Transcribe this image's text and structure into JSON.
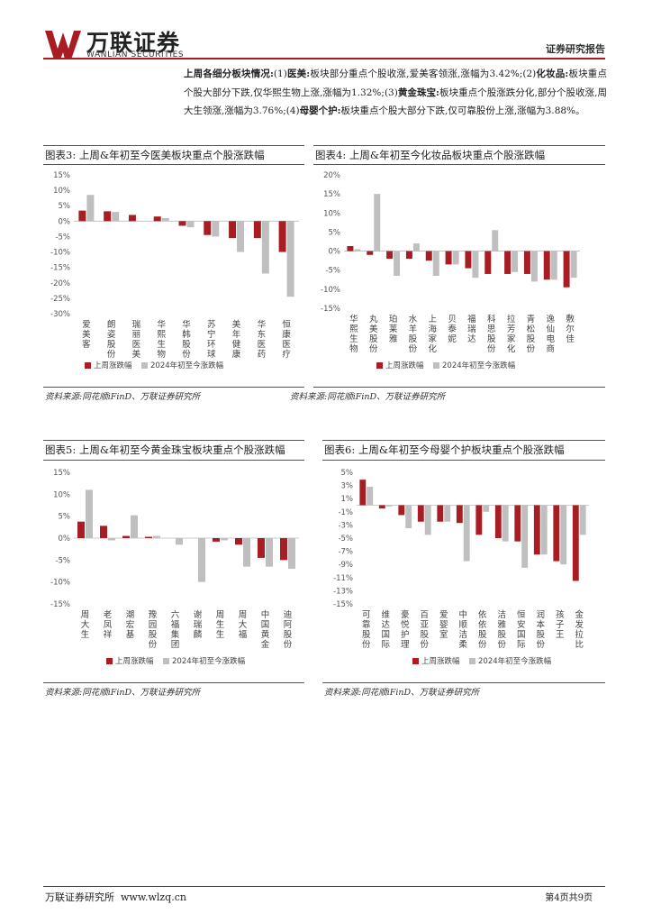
{
  "header": {
    "logo_cn": "万联证券",
    "logo_en": "WANLIAN SECURITIES",
    "report_type": "证券研究报告"
  },
  "summary": {
    "lead": "上周各细分板块情况:",
    "n1": "(1)",
    "s1_name": "医美:",
    "s1_text": "板块部分重点个股收涨,爱美客领涨,涨幅为3.42%;",
    "n2": "(2)",
    "s2_name": "化妆品:",
    "s2_text": "板块重点个股大部分下跌,仅华熙生物上涨,涨幅为1.32%;",
    "n3": "(3)",
    "s3_name": "黄金珠宝:",
    "s3_text": "板块重点个股涨跌分化,部分个股收涨,周大生领涨,涨幅为3.76%;",
    "n4": "(4)",
    "s4_name": "母婴个护:",
    "s4_text": "板块重点个股大部分下跌,仅可靠股份上涨,涨幅为3.88%。"
  },
  "colors": {
    "weekly": "#a71d23",
    "ytd": "#bfbfbf",
    "accent": "#a71d23"
  },
  "charts": [
    {
      "fig_title": "图表3:  上周&年初至今医美板块重点个股涨跌幅",
      "source": "资料来源:同花顺iFinD、万联证券研究所",
      "chart_data": {
        "type": "bar",
        "categories": [
          "爱美客",
          "朗姿股份",
          "瑞丽医美",
          "华熙生物",
          "华韩股份",
          "苏宁环球",
          "美年健康",
          "华东医药",
          "恒康医疗"
        ],
        "series": [
          {
            "name": "上周涨跌幅",
            "values": [
              3.42,
              3.2,
              2.0,
              1.5,
              -1.5,
              -4.5,
              -5.5,
              -5.5,
              -10.0
            ]
          },
          {
            "name": "2024年初至今涨跌幅",
            "values": [
              8.5,
              3.0,
              0.0,
              1.0,
              -2.0,
              -5.0,
              -10.0,
              -17.0,
              -24.5
            ]
          }
        ],
        "ylim": [
          -30,
          15
        ],
        "yticks": [
          15,
          10,
          5,
          0,
          -5,
          -10,
          -15,
          -20,
          -25,
          -30
        ],
        "ytick_labels": [
          "15%",
          "10%",
          "5%",
          "0%",
          "-5%",
          "-10%",
          "-15%",
          "-20%",
          "-25%",
          "-30%"
        ],
        "legend": [
          "上周涨跌幅",
          "2024年初至今涨跌幅"
        ]
      }
    },
    {
      "fig_title": "图表4:  上周&年初至今化妆品板块重点个股涨跌幅",
      "source": "资料来源:同花顺iFinD、万联证券研究所",
      "chart_data": {
        "type": "bar",
        "categories": [
          "华熙生物",
          "丸美股份",
          "珀莱雅",
          "水羊股份",
          "上海家化",
          "贝泰妮",
          "福瑞达",
          "科思股份",
          "拉芳家化",
          "青松股份",
          "逸仙电商",
          "敷尔佳"
        ],
        "series": [
          {
            "name": "上周涨跌幅",
            "values": [
              1.32,
              -1.0,
              -2.0,
              -2.0,
              -2.5,
              -3.5,
              -4.5,
              -6.0,
              -6.0,
              -6.0,
              -7.5,
              -9.5
            ]
          },
          {
            "name": "2024年初至今涨跌幅",
            "values": [
              0.5,
              15.0,
              -6.5,
              2.0,
              -6.5,
              -3.5,
              -7.0,
              5.5,
              -5.5,
              -8.0,
              -7.5,
              -7.0
            ]
          }
        ],
        "ylim": [
          -15,
          20
        ],
        "yticks": [
          20,
          15,
          10,
          5,
          0,
          -5,
          -10,
          -15
        ],
        "ytick_labels": [
          "20%",
          "15%",
          "10%",
          "5%",
          "0%",
          "-5%",
          "-10%",
          "-15%"
        ],
        "legend": [
          "上周涨跌幅",
          "2024年初至今涨跌幅"
        ]
      }
    },
    {
      "fig_title": "图表5:  上周&年初至今黄金珠宝板块重点个股涨跌幅",
      "source": "资料来源:同花顺iFinD、万联证券研究所",
      "chart_data": {
        "type": "bar",
        "categories": [
          "周大生",
          "老凤祥",
          "潮宏基",
          "豫园股份",
          "六福集团",
          "谢瑞麟",
          "周生生",
          "周大福",
          "中国黄金",
          "迪阿股份"
        ],
        "series": [
          {
            "name": "上周涨跌幅",
            "values": [
              3.76,
              2.8,
              0.5,
              0.3,
              0.0,
              0.0,
              -0.8,
              -1.5,
              -4.5,
              -5.0
            ]
          },
          {
            "name": "2024年初至今涨跌幅",
            "values": [
              11.0,
              -0.5,
              5.2,
              0.5,
              -1.5,
              -10.0,
              -0.5,
              -6.5,
              -6.5,
              -7.0
            ]
          }
        ],
        "ylim": [
          -15,
          15
        ],
        "yticks": [
          15,
          10,
          5,
          0,
          -5,
          -10,
          -15
        ],
        "ytick_labels": [
          "15%",
          "10%",
          "5%",
          "0%",
          "-5%",
          "-10%",
          "-15%"
        ],
        "legend": [
          "上周涨跌幅",
          "2024年初至今涨跌幅"
        ]
      }
    },
    {
      "fig_title": "图表6:  上周&年初至今母婴个护板块重点个股涨跌幅",
      "source": "资料来源:同花顺iFinD、万联证券研究所",
      "chart_data": {
        "type": "bar",
        "categories": [
          "可靠股份",
          "维达国际",
          "豪悦护理",
          "百亚股份",
          "爱婴室",
          "中顺洁柔",
          "依依股份",
          "洁雅股份",
          "恒安国际",
          "润本股份",
          "孩子王",
          "金发拉比"
        ],
        "series": [
          {
            "name": "上周涨跌幅",
            "values": [
              3.88,
              -0.5,
              -1.5,
              -2.5,
              -2.5,
              -2.7,
              -4.5,
              -5.0,
              -5.5,
              -7.5,
              -8.5,
              -11.5
            ]
          },
          {
            "name": "2024年初至今涨跌幅",
            "values": [
              2.8,
              -0.2,
              -3.5,
              -4.5,
              -2.5,
              -8.5,
              -1.0,
              -5.5,
              -9.5,
              -7.5,
              -9.0,
              -4.5
            ]
          }
        ],
        "ylim": [
          -15,
          5
        ],
        "yticks": [
          5,
          3,
          1,
          -1,
          -3,
          -5,
          -7,
          -9,
          -11,
          -13,
          -15
        ],
        "ytick_labels": [
          "5%",
          "3%",
          "1%",
          "-1%",
          "-3%",
          "-5%",
          "-7%",
          "-9%",
          "-11%",
          "-13%",
          "-15%"
        ],
        "legend": [
          "上周涨跌幅",
          "2024年初至今涨跌幅"
        ]
      }
    }
  ],
  "footer": {
    "institute": "万联证券研究所",
    "website": "www.wlzq.cn",
    "page": "第4页共9页"
  }
}
